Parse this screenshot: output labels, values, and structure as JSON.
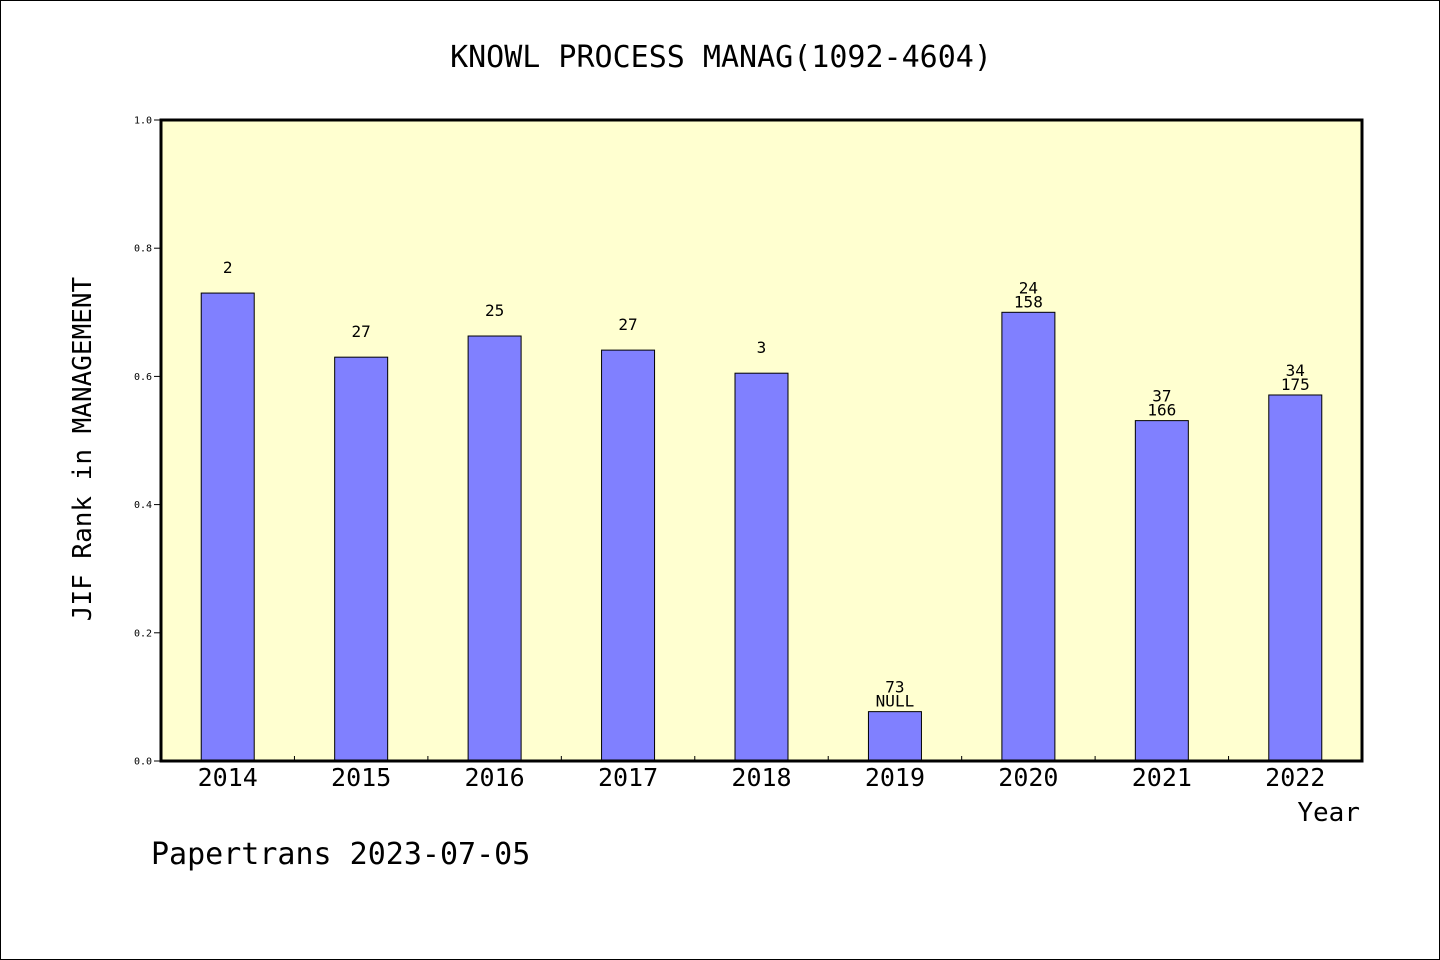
{
  "chart_data": {
    "type": "bar",
    "title": "KNOWL PROCESS MANAG(1092-4604)",
    "xlabel": "Year",
    "ylabel": "JIF Rank in MANAGEMENT",
    "ylim": [
      0,
      1.0
    ],
    "yticks": [
      "0.0",
      "0.2",
      "0.4",
      "0.6",
      "0.8",
      "1.0"
    ],
    "categories": [
      "2014",
      "2015",
      "2016",
      "2017",
      "2018",
      "2019",
      "2020",
      "2021",
      "2022"
    ],
    "values": [
      0.73,
      0.63,
      0.663,
      0.641,
      0.605,
      0.077,
      0.7,
      0.531,
      0.571
    ],
    "labels_top": [
      "2",
      "27",
      "25",
      "27",
      "3",
      "73",
      "24",
      "37",
      "34"
    ],
    "labels_bottom": [
      "",
      "",
      "",
      "",
      "",
      "NULL",
      "158",
      "166",
      "175"
    ],
    "grid": false,
    "colors": {
      "plot_background": "#ffffd0",
      "bar_fill": "#8080ff",
      "bar_stroke": "#000000"
    }
  },
  "footer": {
    "text": "Papertrans 2023-07-05"
  }
}
